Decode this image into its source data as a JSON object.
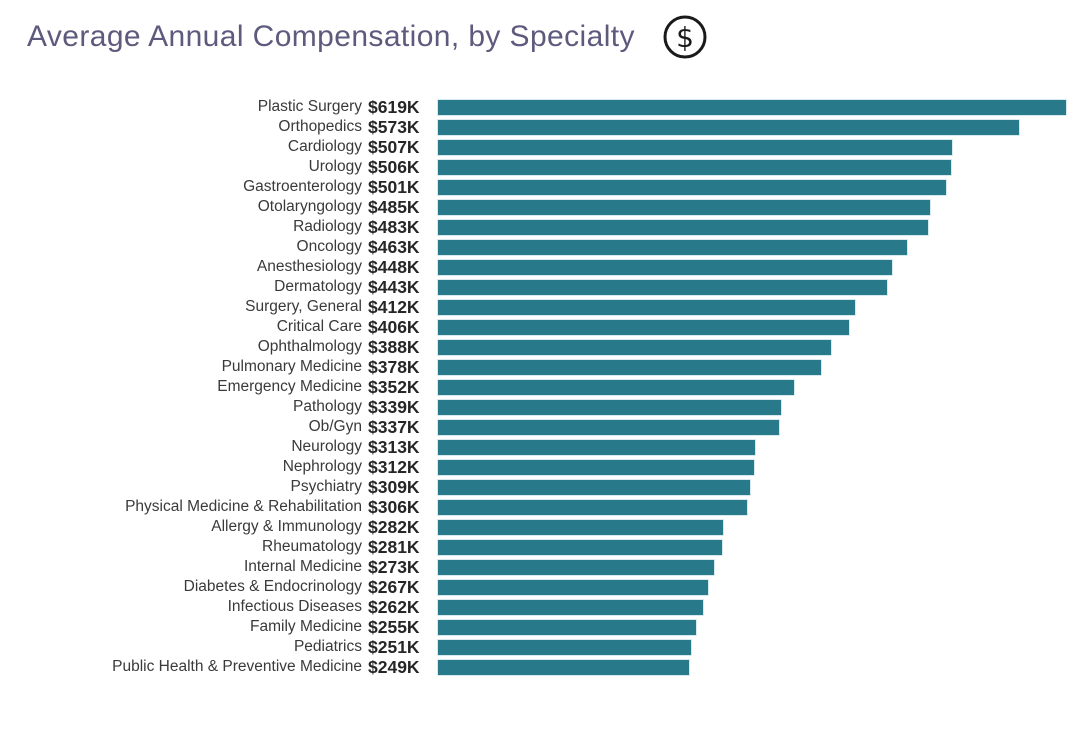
{
  "header": {
    "title": "Average Annual Compensation, by Specialty",
    "icon": "dollar-circle-icon"
  },
  "colors": {
    "background": "#ffffff",
    "title_text": "#5e5a7d",
    "label_text": "#3a3a3a",
    "value_text": "#262626",
    "bar_fill": "#28798a",
    "bar_border": "#d6e9ed",
    "icon_stroke": "#1a1a1a"
  },
  "chart_data": {
    "type": "bar",
    "orientation": "horizontal",
    "title": "Average Annual Compensation, by Specialty",
    "xlabel": "",
    "ylabel": "",
    "unit": "USD thousands per year",
    "xlim": [
      0,
      619
    ],
    "grid": false,
    "legend": false,
    "sort": "descending",
    "categories": [
      "Plastic Surgery",
      "Orthopedics",
      "Cardiology",
      "Urology",
      "Gastroenterology",
      "Otolaryngology",
      "Radiology",
      "Oncology",
      "Anesthesiology",
      "Dermatology",
      "Surgery, General",
      "Critical Care",
      "Ophthalmology",
      "Pulmonary Medicine",
      "Emergency Medicine",
      "Pathology",
      "Ob/Gyn",
      "Neurology",
      "Nephrology",
      "Psychiatry",
      "Physical Medicine & Rehabilitation",
      "Allergy & Immunology",
      "Rheumatology",
      "Internal Medicine",
      "Diabetes & Endocrinology",
      "Infectious Diseases",
      "Family Medicine",
      "Pediatrics",
      "Public Health & Preventive Medicine"
    ],
    "values": [
      619,
      573,
      507,
      506,
      501,
      485,
      483,
      463,
      448,
      443,
      412,
      406,
      388,
      378,
      352,
      339,
      337,
      313,
      312,
      309,
      306,
      282,
      281,
      273,
      267,
      262,
      255,
      251,
      249
    ],
    "value_labels": [
      "$619K",
      "$573K",
      "$507K",
      "$506K",
      "$501K",
      "$485K",
      "$483K",
      "$463K",
      "$448K",
      "$443K",
      "$412K",
      "$406K",
      "$388K",
      "$378K",
      "$352K",
      "$339K",
      "$337K",
      "$313K",
      "$312K",
      "$309K",
      "$306K",
      "$282K",
      "$281K",
      "$273K",
      "$267K",
      "$262K",
      "$255K",
      "$251K",
      "$249K"
    ]
  }
}
